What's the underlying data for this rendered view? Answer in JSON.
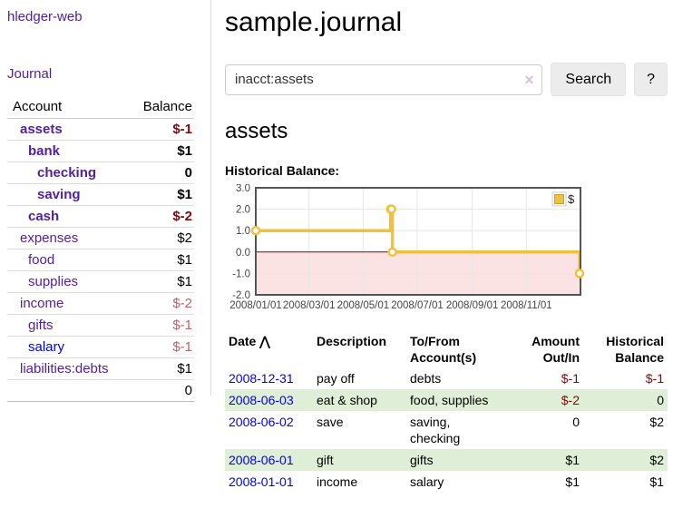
{
  "app": {
    "title": "hledger-web",
    "nav_journal_label": "Journal"
  },
  "icons": {
    "sort_ascending": "⋀",
    "clear": "✕",
    "legend_swatch": "yellow-square"
  },
  "colors": {
    "link_purple": "#52219f",
    "link_blue": "#0000ee",
    "negative_dark_red": "#7c0b0b",
    "negative_muted_rose": "#b9646a",
    "row_stripe_green": "#dfeed6",
    "chart_line_yellow": "#edc240",
    "chart_zero_line_red": "#8b0000",
    "chart_negative_region_pink": "#fbe3e3",
    "button_gray": "#ececec"
  },
  "sidebar": {
    "accounts_table": {
      "header": {
        "account": "Account",
        "balance": "Balance"
      },
      "rows": [
        {
          "label": "assets",
          "balance": "$-1",
          "row_cls": "strong d1",
          "link_cls": "v"
        },
        {
          "label": "bank",
          "balance": "$1",
          "row_cls": "strong d2",
          "link_cls": "v"
        },
        {
          "label": "checking",
          "balance": "0",
          "row_cls": "strong d3",
          "link_cls": "v"
        },
        {
          "label": "saving",
          "balance": "$1",
          "row_cls": "strong d3",
          "link_cls": "v"
        },
        {
          "label": "cash",
          "balance": "$-2",
          "row_cls": "strong d2",
          "link_cls": "v"
        },
        {
          "label": "expenses",
          "balance": "$2",
          "row_cls": "d1",
          "link_cls": "v"
        },
        {
          "label": "food",
          "balance": "$1",
          "row_cls": "d2",
          "link_cls": "v"
        },
        {
          "label": "supplies",
          "balance": "$1",
          "row_cls": "d2",
          "link_cls": "v"
        },
        {
          "label": "income",
          "balance": "$-2",
          "row_cls": "d1",
          "link_cls": "v"
        },
        {
          "label": "gifts",
          "balance": "$-1",
          "row_cls": "d2",
          "link_cls": "v"
        },
        {
          "label": "salary",
          "balance": "$-1",
          "row_cls": "d2",
          "link_cls": "u"
        },
        {
          "label": "liabilities:debts",
          "balance": "$1",
          "row_cls": "d1",
          "link_cls": "v"
        }
      ],
      "total": "0"
    }
  },
  "main": {
    "page_title": "sample.journal",
    "search": {
      "value": "inacct:assets",
      "search_button": "Search",
      "help_button": "?"
    },
    "account_heading": "assets",
    "chart_label": "Historical Balance:"
  },
  "chart_data": {
    "type": "line",
    "steps": true,
    "series": [
      {
        "name": "$",
        "color": "#edc240",
        "points": [
          [
            "2008-01-01",
            1
          ],
          [
            "2008-06-01",
            2
          ],
          [
            "2008-06-02",
            2
          ],
          [
            "2008-06-03",
            0
          ],
          [
            "2008-12-31",
            -1
          ]
        ]
      }
    ],
    "x_range": [
      "2008-01-01",
      "2009-01-01"
    ],
    "ylim": [
      -2,
      3
    ],
    "y_ticks": [
      3,
      2,
      1,
      0,
      -1,
      -2
    ],
    "y_tick_labels": [
      "3.0",
      "2.0",
      "1.0",
      "0.0",
      "-1.0",
      "-2.0"
    ],
    "x_ticks": [
      {
        "date": "2008-01-01",
        "label": "2008/01/01"
      },
      {
        "date": "2008-03-01",
        "label": "2008/03/01"
      },
      {
        "date": "2008-05-01",
        "label": "2008/05/01"
      },
      {
        "date": "2008-07-01",
        "label": "2008/07/01"
      },
      {
        "date": "2008-09-01",
        "label": "2008/09/01"
      },
      {
        "date": "2008-11-01",
        "label": "2008/11/01"
      }
    ],
    "legend": {
      "label": "$",
      "position": "top-right"
    },
    "grid": true
  },
  "register": {
    "headers": {
      "date": "Date",
      "description": "Description",
      "accounts": "To/From\nAccount(s)",
      "amount": "Amount\nOut/In",
      "balance": "Historical\nBalance"
    },
    "rows": [
      {
        "date": "2008-12-31",
        "description": "pay off",
        "accounts": "debts",
        "amount": "$-1",
        "balance": "$-1"
      },
      {
        "date": "2008-06-03",
        "description": "eat & shop",
        "accounts": "food, supplies",
        "amount": "$-2",
        "balance": "0"
      },
      {
        "date": "2008-06-02",
        "description": "save",
        "accounts": "saving,\nchecking",
        "amount": "0",
        "balance": "$2"
      },
      {
        "date": "2008-06-01",
        "description": "gift",
        "accounts": "gifts",
        "amount": "$1",
        "balance": "$2"
      },
      {
        "date": "2008-01-01",
        "description": "income",
        "accounts": "salary",
        "amount": "$1",
        "balance": "$1"
      }
    ]
  }
}
